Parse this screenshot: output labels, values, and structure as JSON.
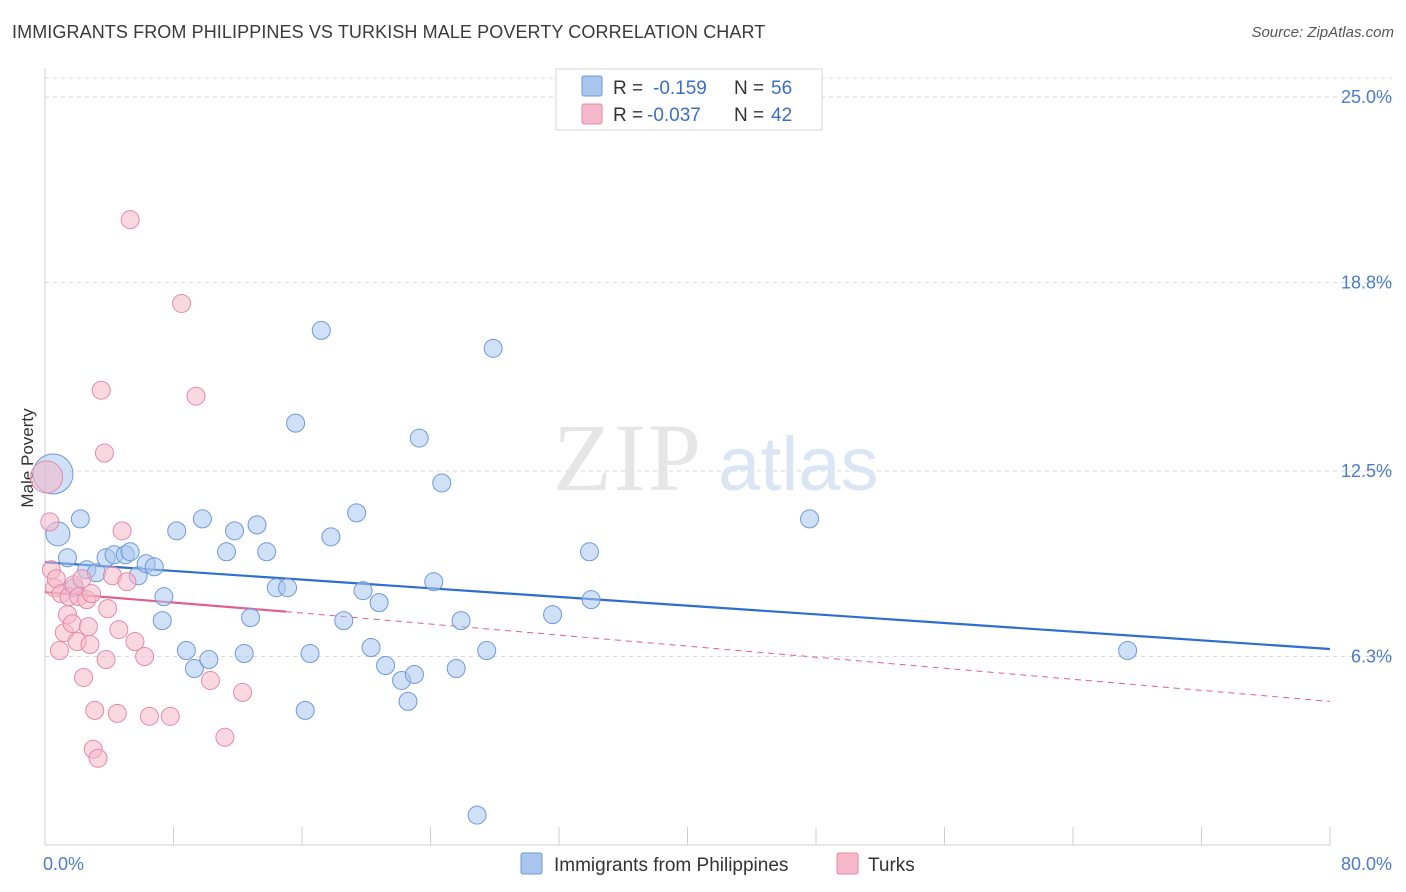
{
  "title": "IMMIGRANTS FROM PHILIPPINES VS TURKISH MALE POVERTY CORRELATION CHART",
  "source": "Source: ZipAtlas.com",
  "watermark": {
    "zip": "ZIP",
    "atlas": "atlas"
  },
  "colors": {
    "blue_fill": "#a9c6ee",
    "blue_stroke": "#6f9ad8",
    "blue_line": "#2f6fcc",
    "pink_fill": "#f5b8cb",
    "pink_stroke": "#e58aa8",
    "pink_line": "#e0608c",
    "grid": "#d9d9d9",
    "axis_text": "#4a7cc9"
  },
  "legend": {
    "r_label": "R =",
    "n_label": "N =",
    "entries": [
      {
        "r": "-0.159",
        "n": "56"
      },
      {
        "r": "-0.037",
        "n": "42"
      }
    ]
  },
  "chart_data": {
    "type": "scatter",
    "xlabel": "",
    "ylabel": "Male Poverty",
    "xlim": [
      0,
      80
    ],
    "ylim": [
      0,
      25
    ],
    "x_tick_labels": [
      "0.0%",
      "80.0%"
    ],
    "y_ticks": [
      6.3,
      12.5,
      18.8,
      25.0
    ],
    "y_tick_labels": [
      "6.3%",
      "12.5%",
      "18.8%",
      "25.0%"
    ],
    "grid": "horizontal dashed",
    "legend_position": "top-center",
    "series": [
      {
        "name": "Immigrants from Philippines",
        "points": [
          [
            0.5,
            12.4,
            20
          ],
          [
            0.8,
            10.4,
            12
          ],
          [
            1.4,
            9.6,
            9
          ],
          [
            1.8,
            8.6,
            9
          ],
          [
            2.2,
            10.9,
            9
          ],
          [
            2.6,
            9.2,
            9
          ],
          [
            3.2,
            9.1,
            9
          ],
          [
            3.8,
            9.6,
            9
          ],
          [
            4.3,
            9.7,
            9
          ],
          [
            5.0,
            9.7,
            9
          ],
          [
            5.3,
            9.8,
            9
          ],
          [
            5.8,
            9.0,
            9
          ],
          [
            6.3,
            9.4,
            9
          ],
          [
            6.8,
            9.3,
            9
          ],
          [
            7.4,
            8.3,
            9
          ],
          [
            7.3,
            7.5,
            9
          ],
          [
            8.2,
            10.5,
            9
          ],
          [
            8.8,
            6.5,
            9
          ],
          [
            9.3,
            5.9,
            9
          ],
          [
            9.8,
            10.9,
            9
          ],
          [
            10.2,
            6.2,
            9
          ],
          [
            11.3,
            9.8,
            9
          ],
          [
            11.8,
            10.5,
            9
          ],
          [
            12.4,
            6.4,
            9
          ],
          [
            12.8,
            7.6,
            9
          ],
          [
            13.2,
            10.7,
            9
          ],
          [
            13.8,
            9.8,
            9
          ],
          [
            14.4,
            8.6,
            9
          ],
          [
            15.1,
            8.6,
            9
          ],
          [
            15.6,
            14.1,
            9
          ],
          [
            16.2,
            4.5,
            9
          ],
          [
            16.5,
            6.4,
            9
          ],
          [
            17.2,
            17.2,
            9
          ],
          [
            17.8,
            10.3,
            9
          ],
          [
            18.6,
            7.5,
            9
          ],
          [
            19.4,
            11.1,
            9
          ],
          [
            19.8,
            8.5,
            9
          ],
          [
            20.3,
            6.6,
            9
          ],
          [
            20.8,
            8.1,
            9
          ],
          [
            21.2,
            6.0,
            9
          ],
          [
            22.2,
            5.5,
            9
          ],
          [
            22.6,
            4.8,
            9
          ],
          [
            23.0,
            5.7,
            9
          ],
          [
            23.3,
            13.6,
            9
          ],
          [
            24.2,
            8.8,
            9
          ],
          [
            24.7,
            12.1,
            9
          ],
          [
            25.6,
            5.9,
            9
          ],
          [
            25.9,
            7.5,
            9
          ],
          [
            26.9,
            1.0,
            9
          ],
          [
            27.5,
            6.5,
            9
          ],
          [
            27.9,
            16.6,
            9
          ],
          [
            31.6,
            7.7,
            9
          ],
          [
            33.9,
            9.8,
            9
          ],
          [
            34.0,
            8.2,
            9
          ],
          [
            47.6,
            10.9,
            9
          ],
          [
            67.4,
            6.5,
            9
          ]
        ]
      },
      {
        "name": "Turks",
        "points": [
          [
            0.1,
            12.3,
            16
          ],
          [
            0.3,
            10.8,
            9
          ],
          [
            0.4,
            9.2,
            9
          ],
          [
            0.6,
            8.6,
            9
          ],
          [
            0.7,
            8.9,
            9
          ],
          [
            0.9,
            6.5,
            9
          ],
          [
            1.0,
            8.4,
            9
          ],
          [
            1.2,
            7.1,
            9
          ],
          [
            1.4,
            7.7,
            9
          ],
          [
            1.5,
            8.3,
            9
          ],
          [
            1.7,
            7.4,
            9
          ],
          [
            1.8,
            8.7,
            9
          ],
          [
            2.0,
            6.8,
            9
          ],
          [
            2.1,
            8.3,
            9
          ],
          [
            2.3,
            8.9,
            9
          ],
          [
            2.4,
            5.6,
            9
          ],
          [
            2.6,
            8.2,
            9
          ],
          [
            2.7,
            7.3,
            9
          ],
          [
            2.8,
            6.7,
            9
          ],
          [
            2.9,
            8.4,
            9
          ],
          [
            3.0,
            3.2,
            9
          ],
          [
            3.1,
            4.5,
            9
          ],
          [
            3.3,
            2.9,
            9
          ],
          [
            3.5,
            15.2,
            9
          ],
          [
            3.7,
            13.1,
            9
          ],
          [
            3.8,
            6.2,
            9
          ],
          [
            3.9,
            7.9,
            9
          ],
          [
            4.2,
            9.0,
            9
          ],
          [
            4.5,
            4.4,
            9
          ],
          [
            4.6,
            7.2,
            9
          ],
          [
            4.8,
            10.5,
            9
          ],
          [
            5.1,
            8.8,
            9
          ],
          [
            5.3,
            20.9,
            9
          ],
          [
            5.6,
            6.8,
            9
          ],
          [
            6.2,
            6.3,
            9
          ],
          [
            6.5,
            4.3,
            9
          ],
          [
            7.8,
            4.3,
            9
          ],
          [
            8.5,
            18.1,
            9
          ],
          [
            9.4,
            15.0,
            9
          ],
          [
            10.3,
            5.5,
            9
          ],
          [
            11.2,
            3.6,
            9
          ],
          [
            12.3,
            5.1,
            9
          ]
        ]
      }
    ],
    "trendlines": [
      {
        "series": "Immigrants from Philippines",
        "x": [
          0,
          80
        ],
        "y": [
          9.45,
          6.55
        ],
        "style": "solid"
      },
      {
        "series": "Turks",
        "x": [
          0,
          15
        ],
        "y": [
          8.45,
          7.8
        ],
        "style": "solid"
      },
      {
        "series": "Turks",
        "x": [
          15,
          80
        ],
        "y": [
          7.8,
          4.8
        ],
        "style": "dashed"
      }
    ]
  }
}
